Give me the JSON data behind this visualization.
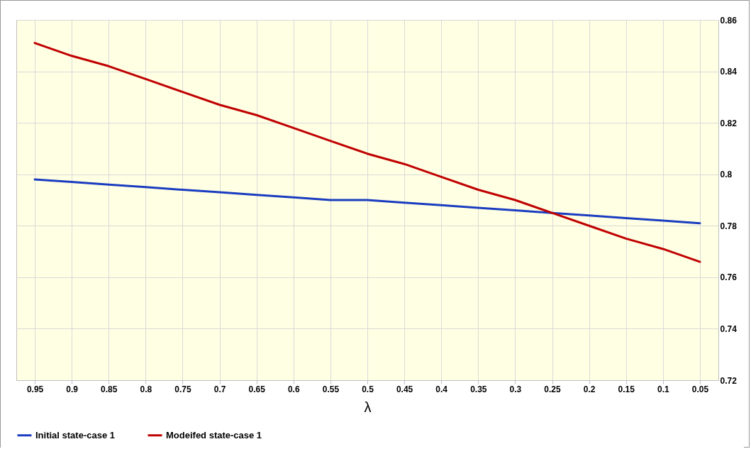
{
  "chart_data": {
    "type": "line",
    "xlabel": "λ",
    "categories": [
      "0.95",
      "0.9",
      "0.85",
      "0.8",
      "0.75",
      "0.7",
      "0.65",
      "0.6",
      "0.55",
      "0.5",
      "0.45",
      "0.4",
      "0.35",
      "0.3",
      "0.25",
      "0.2",
      "0.15",
      "0.1",
      "0.05"
    ],
    "series": [
      {
        "name": "Initial state-case 1",
        "color": "#1a3cc0",
        "values": [
          0.798,
          0.797,
          0.796,
          0.795,
          0.794,
          0.793,
          0.792,
          0.791,
          0.79,
          0.79,
          0.789,
          0.788,
          0.787,
          0.786,
          0.785,
          0.784,
          0.783,
          0.782,
          0.781
        ]
      },
      {
        "name": "Modeifed state-case 1",
        "color": "#c00000",
        "values": [
          0.851,
          0.846,
          0.842,
          0.837,
          0.832,
          0.827,
          0.823,
          0.818,
          0.813,
          0.808,
          0.804,
          0.799,
          0.794,
          0.79,
          0.785,
          0.78,
          0.775,
          0.771,
          0.766
        ]
      }
    ],
    "ylim": [
      0.72,
      0.86
    ],
    "yticks": [
      0.72,
      0.74,
      0.76,
      0.78,
      0.8,
      0.82,
      0.84,
      0.86
    ],
    "grid": true,
    "legend": "bottom",
    "marker": "none",
    "line_style": "solid"
  }
}
